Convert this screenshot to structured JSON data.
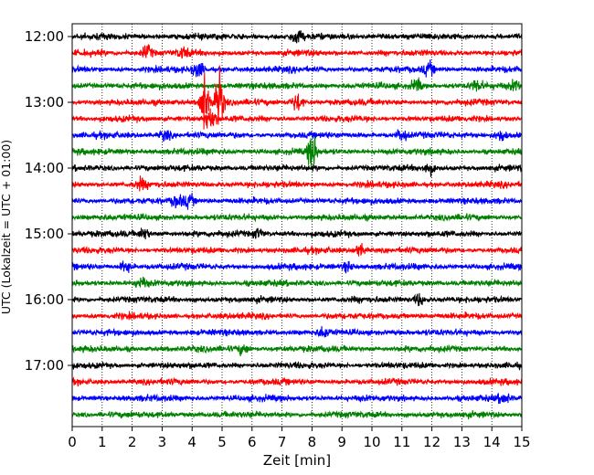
{
  "chart_data": {
    "type": "line",
    "title": "",
    "xlabel": "Zeit  [min]",
    "ylabel": "UTC (Lokalzeit = UTC + 01:00)",
    "xlim": [
      0,
      15
    ],
    "x_ticks": [
      0,
      1,
      2,
      3,
      4,
      5,
      6,
      7,
      8,
      9,
      10,
      11,
      12,
      13,
      14,
      15
    ],
    "x_tick_labels": [
      "0",
      "1",
      "2",
      "3",
      "4",
      "5",
      "6",
      "7",
      "8",
      "9",
      "10",
      "11",
      "12",
      "13",
      "14",
      "15"
    ],
    "y_ticks": [
      "12:00",
      "13:00",
      "14:00",
      "15:00",
      "16:00",
      "17:00"
    ],
    "grid": {
      "x": "dotted",
      "y": false
    },
    "trace_interval_min": 15,
    "color_cycle": [
      "#000000",
      "#ff0000",
      "#0000ff",
      "#008000"
    ],
    "traces": [
      {
        "start": "12:00",
        "color": "#000000",
        "events": [
          {
            "t": 7.5,
            "amp": 1.6
          }
        ]
      },
      {
        "start": "12:15",
        "color": "#ff0000",
        "events": [
          {
            "t": 2.5,
            "amp": 1.8
          },
          {
            "t": 3.7,
            "amp": 1.3
          }
        ]
      },
      {
        "start": "12:30",
        "color": "#0000ff",
        "events": [
          {
            "t": 4.2,
            "amp": 1.8
          },
          {
            "t": 11.9,
            "amp": 1.6
          }
        ]
      },
      {
        "start": "12:45",
        "color": "#008000",
        "events": [
          {
            "t": 11.5,
            "amp": 1.6
          },
          {
            "t": 13.5,
            "amp": 1.4
          },
          {
            "t": 14.8,
            "amp": 1.3
          }
        ]
      },
      {
        "start": "13:00",
        "color": "#ff0000",
        "events": [
          {
            "t": 4.4,
            "amp": 8.0
          },
          {
            "t": 4.9,
            "amp": 8.0
          },
          {
            "t": 7.5,
            "amp": 2.3
          }
        ]
      },
      {
        "start": "13:15",
        "color": "#ff0000",
        "events": [
          {
            "t": 4.6,
            "amp": 3.0
          }
        ]
      },
      {
        "start": "13:30",
        "color": "#0000ff",
        "events": [
          {
            "t": 3.1,
            "amp": 1.3
          },
          {
            "t": 11.0,
            "amp": 1.5
          },
          {
            "t": 14.3,
            "amp": 1.5
          }
        ]
      },
      {
        "start": "13:45",
        "color": "#008000",
        "events": [
          {
            "t": 8.0,
            "amp": 5.0
          }
        ]
      },
      {
        "start": "14:00",
        "color": "#000000",
        "events": [
          {
            "t": 11.9,
            "amp": 1.5
          }
        ]
      },
      {
        "start": "14:15",
        "color": "#ff0000",
        "events": [
          {
            "t": 2.3,
            "amp": 1.2
          }
        ]
      },
      {
        "start": "14:30",
        "color": "#0000ff",
        "events": [
          {
            "t": 3.5,
            "amp": 1.6
          },
          {
            "t": 3.9,
            "amp": 1.6
          }
        ]
      },
      {
        "start": "14:45",
        "color": "#008000",
        "events": []
      },
      {
        "start": "15:00",
        "color": "#000000",
        "events": [
          {
            "t": 2.4,
            "amp": 1.3
          },
          {
            "t": 6.2,
            "amp": 1.2
          }
        ]
      },
      {
        "start": "15:15",
        "color": "#ff0000",
        "events": [
          {
            "t": 9.6,
            "amp": 1.4
          }
        ]
      },
      {
        "start": "15:30",
        "color": "#0000ff",
        "events": [
          {
            "t": 1.8,
            "amp": 1.6
          },
          {
            "t": 9.2,
            "amp": 1.2
          }
        ]
      },
      {
        "start": "15:45",
        "color": "#008000",
        "events": [
          {
            "t": 2.3,
            "amp": 1.2
          }
        ]
      },
      {
        "start": "16:00",
        "color": "#000000",
        "events": [
          {
            "t": 11.6,
            "amp": 1.5
          }
        ]
      },
      {
        "start": "16:15",
        "color": "#ff0000",
        "events": []
      },
      {
        "start": "16:30",
        "color": "#0000ff",
        "events": [
          {
            "t": 8.4,
            "amp": 1.2
          }
        ]
      },
      {
        "start": "16:45",
        "color": "#008000",
        "events": [
          {
            "t": 5.7,
            "amp": 1.2
          }
        ]
      },
      {
        "start": "17:00",
        "color": "#000000",
        "events": []
      },
      {
        "start": "17:15",
        "color": "#ff0000",
        "events": []
      },
      {
        "start": "17:30",
        "color": "#0000ff",
        "events": [
          {
            "t": 14.4,
            "amp": 1.3
          }
        ]
      },
      {
        "start": "17:45",
        "color": "#008000",
        "events": []
      }
    ]
  }
}
